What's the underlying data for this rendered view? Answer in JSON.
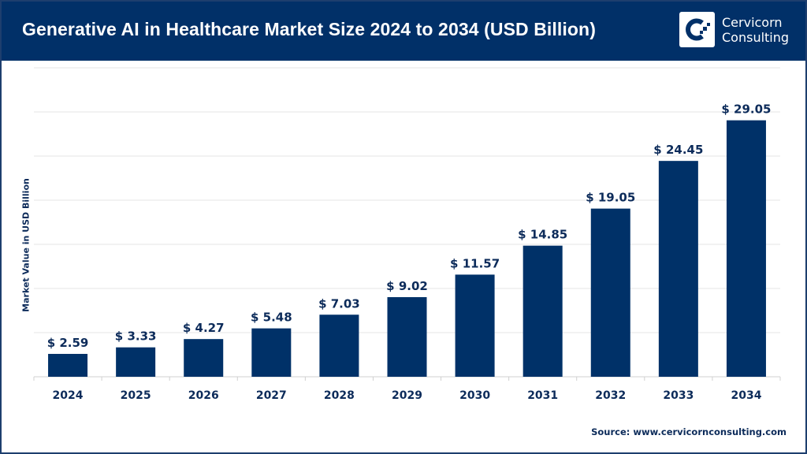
{
  "header": {
    "title": "Generative AI in Healthcare Market Size 2024 to 2034 (USD Billion)",
    "logo_text_line1": "Cervicorn",
    "logo_text_line2": "Consulting"
  },
  "source": "Source: www.cervicornconsulting.com",
  "colors": {
    "bar": "#003168",
    "header": "#013068",
    "grid": "#e6e6e6"
  },
  "chart_data": {
    "type": "bar",
    "title": "Generative AI in Healthcare Market Size 2024 to 2034 (USD Billion)",
    "xlabel": "",
    "ylabel": "Market Value in USD Billion",
    "categories": [
      "2024",
      "2025",
      "2026",
      "2027",
      "2028",
      "2029",
      "2030",
      "2031",
      "2032",
      "2033",
      "2034"
    ],
    "values": [
      2.59,
      3.33,
      4.27,
      5.48,
      7.03,
      9.02,
      11.57,
      14.85,
      19.05,
      24.45,
      29.05
    ],
    "data_labels": [
      "$ 2.59",
      "$ 3.33",
      "$ 4.27",
      "$ 5.48",
      "$ 7.03",
      "$ 9.02",
      "$ 11.57",
      "$ 14.85",
      "$ 19.05",
      "$ 24.45",
      "$ 29.05"
    ],
    "ylim": [
      0,
      35
    ],
    "grid": true,
    "y_tick_labels_shown": false
  }
}
